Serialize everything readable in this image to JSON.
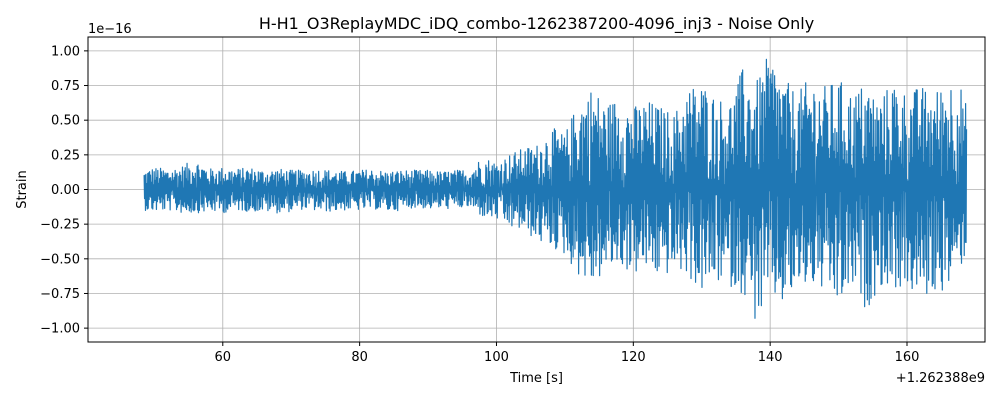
{
  "chart_data": {
    "type": "line",
    "title": "H-H1_O3ReplayMDC_iDQ_combo-1262387200-4096_inj3 - Noise Only",
    "xlabel": "Time [s]",
    "ylabel": "Strain",
    "x_offset_label": "+1.262388e9",
    "y_scale_label": "1e−16",
    "xlim": [
      40.3,
      171.4
    ],
    "ylim": [
      -1.1,
      1.1
    ],
    "x_ticks": [
      {
        "value": 60,
        "label": "60"
      },
      {
        "value": 80,
        "label": "80"
      },
      {
        "value": 100,
        "label": "100"
      },
      {
        "value": 120,
        "label": "120"
      },
      {
        "value": 140,
        "label": "140"
      },
      {
        "value": 160,
        "label": "160"
      }
    ],
    "y_ticks": [
      {
        "value": 1.0,
        "label": "1.00"
      },
      {
        "value": 0.75,
        "label": "0.75"
      },
      {
        "value": 0.5,
        "label": "0.50"
      },
      {
        "value": 0.25,
        "label": "0.25"
      },
      {
        "value": 0.0,
        "label": "0.00"
      },
      {
        "value": -0.25,
        "label": "−0.25"
      },
      {
        "value": -0.5,
        "label": "−0.50"
      },
      {
        "value": -0.75,
        "label": "−0.75"
      },
      {
        "value": -1.0,
        "label": "−1.00"
      }
    ],
    "grid": true,
    "series": [
      {
        "color": "#1f77b4",
        "x": [
          48.5,
          50,
          52,
          54,
          56,
          58,
          60,
          62,
          64,
          66,
          68,
          70,
          72,
          74,
          76,
          78,
          80,
          82,
          84,
          86,
          88,
          90,
          92,
          94,
          96,
          98,
          100,
          102,
          104,
          106,
          108,
          110,
          112,
          114,
          116,
          118,
          120,
          122,
          124,
          126,
          128,
          130,
          132,
          134,
          136,
          138,
          140,
          142,
          144,
          146,
          148,
          150,
          152,
          154,
          156,
          158,
          160,
          162,
          164,
          166,
          168,
          168.7
        ],
        "y_upper": [
          0.14,
          0.16,
          0.15,
          0.17,
          0.22,
          0.15,
          0.16,
          0.15,
          0.16,
          0.14,
          0.15,
          0.14,
          0.14,
          0.15,
          0.14,
          0.13,
          0.14,
          0.15,
          0.13,
          0.14,
          0.14,
          0.14,
          0.13,
          0.14,
          0.15,
          0.24,
          0.2,
          0.26,
          0.3,
          0.33,
          0.45,
          0.4,
          0.65,
          0.75,
          0.62,
          0.68,
          0.6,
          0.65,
          0.6,
          0.55,
          0.75,
          0.78,
          0.68,
          0.63,
          0.88,
          0.78,
          1.0,
          0.8,
          0.7,
          0.82,
          0.75,
          0.8,
          0.7,
          0.78,
          0.65,
          0.8,
          0.7,
          0.75,
          0.7,
          0.82,
          0.75,
          0.6
        ],
        "y_lower": [
          -0.15,
          -0.16,
          -0.15,
          -0.17,
          -0.17,
          -0.16,
          -0.17,
          -0.15,
          -0.16,
          -0.16,
          -0.17,
          -0.16,
          -0.14,
          -0.16,
          -0.16,
          -0.15,
          -0.15,
          -0.14,
          -0.16,
          -0.15,
          -0.13,
          -0.14,
          -0.14,
          -0.14,
          -0.13,
          -0.2,
          -0.22,
          -0.28,
          -0.3,
          -0.38,
          -0.42,
          -0.48,
          -0.62,
          -0.7,
          -0.6,
          -0.55,
          -0.62,
          -0.58,
          -0.65,
          -0.58,
          -0.63,
          -0.75,
          -0.67,
          -0.7,
          -0.75,
          -0.98,
          -0.78,
          -0.85,
          -0.72,
          -0.7,
          -0.75,
          -0.85,
          -0.72,
          -0.88,
          -0.7,
          -0.72,
          -0.72,
          -0.8,
          -0.75,
          -0.72,
          -0.55,
          -0.45
        ]
      }
    ]
  }
}
